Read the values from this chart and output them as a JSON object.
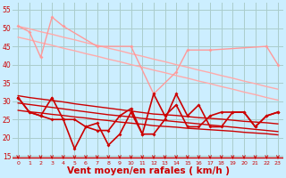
{
  "bg_color": "#cceeff",
  "grid_color": "#aacccc",
  "xlabel": "Vent moyen/en rafales ( km/h )",
  "xlabel_color": "#cc0000",
  "tick_color": "#cc0000",
  "ylim": [
    14,
    57
  ],
  "xlim": [
    -0.5,
    23.5
  ],
  "yticks": [
    15,
    20,
    25,
    30,
    35,
    40,
    45,
    50,
    55
  ],
  "xticks": [
    0,
    1,
    2,
    3,
    4,
    5,
    6,
    7,
    8,
    9,
    10,
    11,
    12,
    13,
    14,
    15,
    16,
    17,
    18,
    19,
    20,
    21,
    22,
    23
  ],
  "upper_diag1": [
    50.5,
    49.8,
    49.0,
    48.3,
    47.5,
    46.8,
    46.0,
    45.3,
    44.5,
    43.8,
    43.0,
    42.3,
    41.5,
    40.8,
    40.0,
    39.3,
    38.5,
    37.8,
    37.0,
    36.3,
    35.5,
    34.8,
    34.0,
    33.3
  ],
  "upper_diag2": [
    47.5,
    46.8,
    46.0,
    45.3,
    44.5,
    43.8,
    43.0,
    42.3,
    41.5,
    40.8,
    40.0,
    39.3,
    38.5,
    37.8,
    37.0,
    36.3,
    35.5,
    34.8,
    34.0,
    33.3,
    32.5,
    31.8,
    31.0,
    30.3
  ],
  "rafale_pink_x": [
    0,
    1,
    2,
    3,
    4,
    7,
    10,
    12,
    14,
    15,
    17,
    22,
    23
  ],
  "rafale_pink_y": [
    50.5,
    49,
    42,
    53,
    50.5,
    45,
    45,
    32,
    38,
    44,
    44,
    45,
    40
  ],
  "lower_diag1": [
    31.5,
    31.0,
    30.6,
    30.2,
    29.8,
    29.3,
    28.9,
    28.5,
    28.1,
    27.7,
    27.3,
    26.9,
    26.5,
    26.3,
    26.1,
    25.8,
    25.5,
    25.3,
    25.1,
    24.8,
    24.5,
    24.3,
    24.1,
    23.8
  ],
  "lower_diag2": [
    27.5,
    27.1,
    26.8,
    26.4,
    26.1,
    25.7,
    25.4,
    25.0,
    24.7,
    24.3,
    24.0,
    23.7,
    23.3,
    23.1,
    22.9,
    22.6,
    22.4,
    22.2,
    22.0,
    21.8,
    21.5,
    21.3,
    21.1,
    20.8
  ],
  "lower_diag3": [
    29.5,
    29.1,
    28.7,
    28.3,
    27.9,
    27.5,
    27.1,
    26.7,
    26.3,
    26.0,
    25.7,
    25.3,
    25.0,
    24.7,
    24.4,
    24.1,
    23.8,
    23.5,
    23.2,
    22.9,
    22.6,
    22.3,
    22.0,
    21.7
  ],
  "mean_x": [
    0,
    1,
    2,
    3,
    4,
    5,
    6,
    7,
    8,
    9,
    10,
    11,
    12,
    13,
    14,
    15,
    16,
    17,
    18,
    19,
    20,
    21,
    22,
    23
  ],
  "mean_y": [
    31,
    27,
    26,
    31,
    25,
    25,
    23,
    24,
    18,
    21,
    27,
    21,
    21,
    25,
    32,
    26,
    29,
    23,
    23,
    27,
    27,
    23,
    26,
    27
  ],
  "rafale_dark_x": [
    0,
    1,
    2,
    3,
    4,
    5,
    6,
    7,
    8,
    9,
    10,
    11,
    12,
    13,
    14,
    15,
    16,
    17,
    18,
    19,
    20,
    21,
    22,
    23
  ],
  "rafale_dark_y": [
    31,
    27,
    26,
    25,
    25,
    17,
    23,
    22,
    22,
    26,
    28,
    21,
    32,
    26,
    29,
    23,
    23,
    26,
    27,
    27,
    27,
    23,
    26,
    27
  ],
  "arrow_color": "#cc0000"
}
